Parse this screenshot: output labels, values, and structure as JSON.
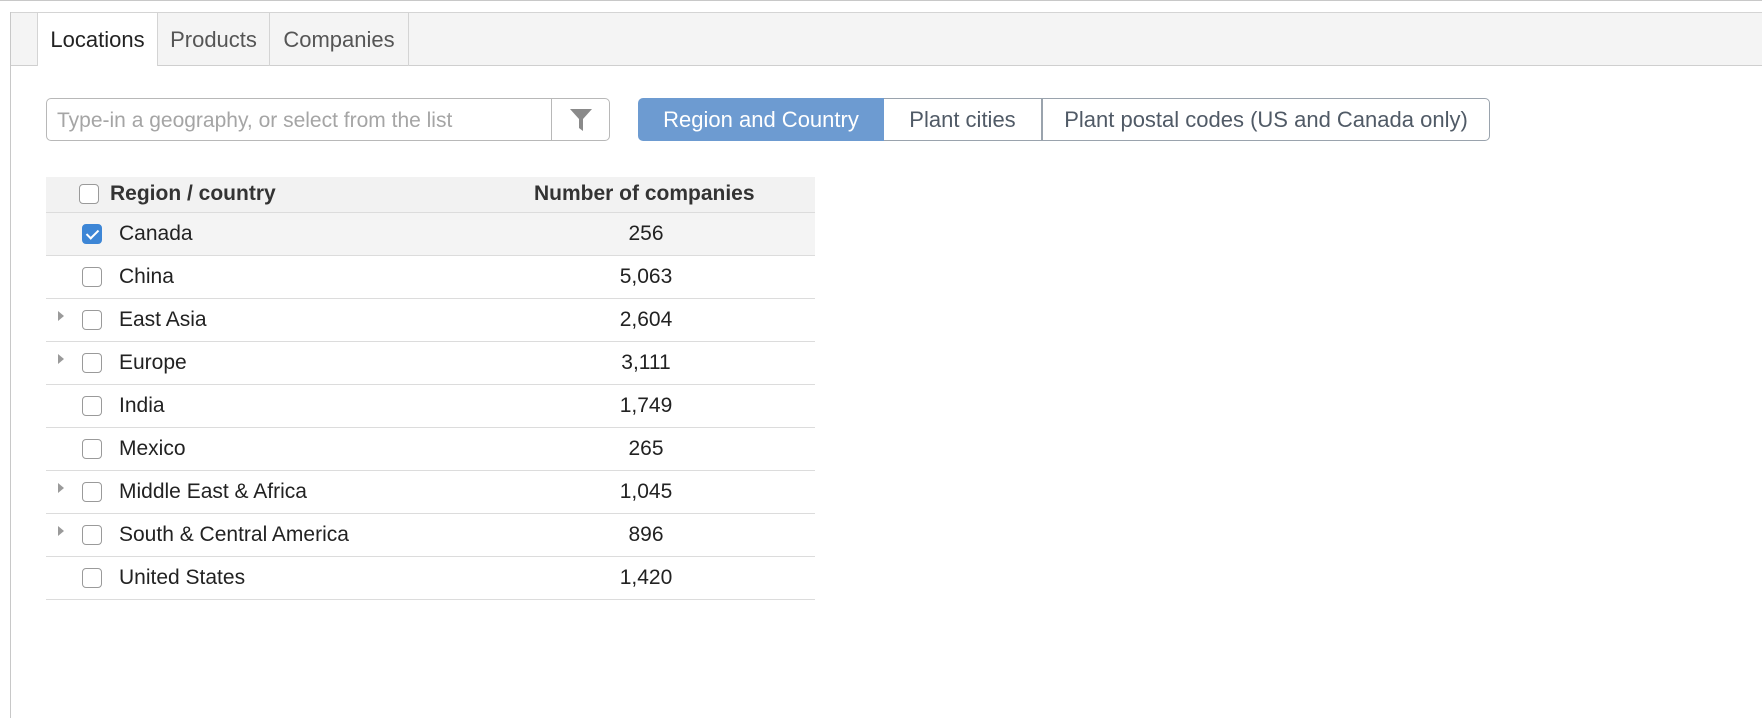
{
  "tabs": [
    {
      "label": "Locations",
      "active": true
    },
    {
      "label": "Products",
      "active": false
    },
    {
      "label": "Companies",
      "active": false
    }
  ],
  "search": {
    "placeholder": "Type-in a geography, or select from the list",
    "value": "",
    "filter_icon": "filter-icon"
  },
  "view_modes": [
    {
      "label": "Region and Country",
      "active": true
    },
    {
      "label": "Plant cities",
      "active": false
    },
    {
      "label": "Plant postal codes (US and Canada only)",
      "active": false
    }
  ],
  "table": {
    "headers": {
      "name": "Region / country",
      "count": "Number of companies"
    },
    "select_all_checked": false,
    "rows": [
      {
        "name": "Canada",
        "count": "256",
        "checked": true,
        "expandable": false
      },
      {
        "name": "China",
        "count": "5,063",
        "checked": false,
        "expandable": false
      },
      {
        "name": "East Asia",
        "count": "2,604",
        "checked": false,
        "expandable": true
      },
      {
        "name": "Europe",
        "count": "3,111",
        "checked": false,
        "expandable": true
      },
      {
        "name": "India",
        "count": "1,749",
        "checked": false,
        "expandable": false
      },
      {
        "name": "Mexico",
        "count": "265",
        "checked": false,
        "expandable": false
      },
      {
        "name": "Middle East & Africa",
        "count": "1,045",
        "checked": false,
        "expandable": true
      },
      {
        "name": "South & Central America",
        "count": "896",
        "checked": false,
        "expandable": true
      },
      {
        "name": "United States",
        "count": "1,420",
        "checked": false,
        "expandable": false
      }
    ]
  },
  "colors": {
    "accent": "#6d9bd1",
    "checkbox_checked": "#3d86d6"
  }
}
